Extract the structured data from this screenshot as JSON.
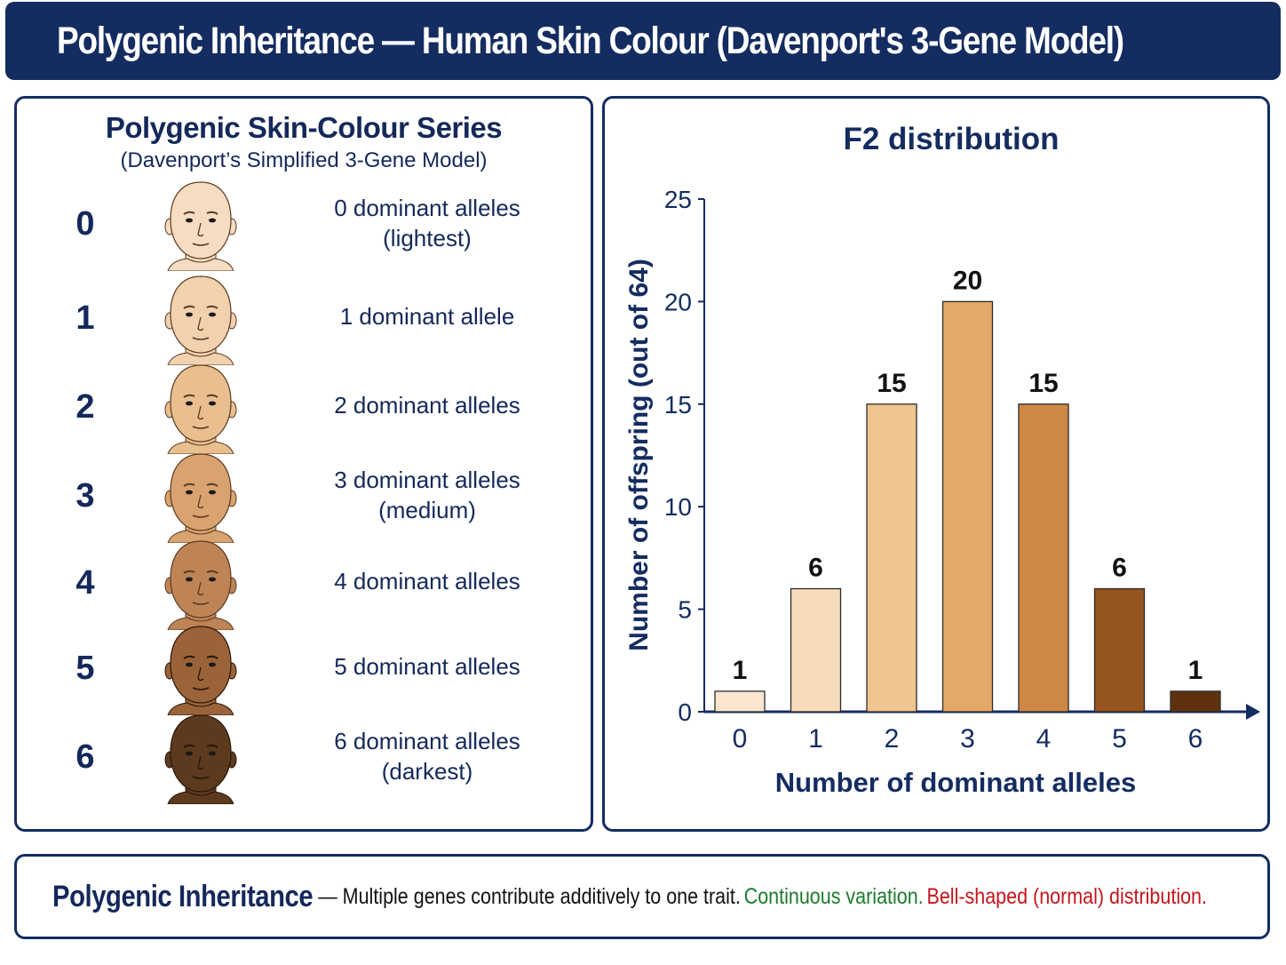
{
  "header": {
    "title": "Polygenic Inheritance — Human Skin Colour (Davenport's 3-Gene Model)"
  },
  "series_panel": {
    "title": "Polygenic Skin-Colour Series",
    "subtitle": "(Davenport’s Simplified 3-Gene Model)",
    "rows": [
      {
        "number": "0",
        "line1": "0 dominant alleles",
        "line2": "(lightest)",
        "skin_color": "#f6dcc0"
      },
      {
        "number": "1",
        "line1": "1 dominant allele",
        "line2": "",
        "skin_color": "#f2d2ae"
      },
      {
        "number": "2",
        "line1": "2 dominant alleles",
        "line2": "",
        "skin_color": "#e9bf90"
      },
      {
        "number": "3",
        "line1": "3 dominant alleles",
        "line2": "(medium)",
        "skin_color": "#d9a36f"
      },
      {
        "number": "4",
        "line1": "4 dominant alleles",
        "line2": "",
        "skin_color": "#bf8455"
      },
      {
        "number": "5",
        "line1": "5 dominant alleles",
        "line2": "",
        "skin_color": "#9a633a"
      },
      {
        "number": "6",
        "line1": "6 dominant alleles",
        "line2": "(darkest)",
        "skin_color": "#5c3a1e"
      }
    ]
  },
  "chart_data": {
    "type": "bar",
    "title": "F2 distribution",
    "xlabel": "Number of dominant alleles",
    "ylabel": "Number of offspring (out of 64)",
    "categories": [
      "0",
      "1",
      "2",
      "3",
      "4",
      "5",
      "6"
    ],
    "values": [
      1,
      6,
      15,
      20,
      15,
      6,
      1
    ],
    "ylim": [
      0,
      25
    ],
    "yticks": [
      0,
      5,
      10,
      15,
      20,
      25
    ],
    "bar_colors": [
      "#fae6d0",
      "#f6dcbb",
      "#efc590",
      "#e4a868",
      "#cf8745",
      "#96541e",
      "#5f320f"
    ],
    "grid": false,
    "legend": "none"
  },
  "footer": {
    "heading": "Polygenic Inheritance",
    "dash": " — ",
    "body": "Multiple genes contribute additively to one trait.",
    "green_text": "Continuous variation.",
    "red_text": "Bell-shaped (normal) distribution."
  },
  "colors": {
    "navy": "#142c60",
    "green": "#1d7a2c",
    "red": "#c4161c"
  }
}
